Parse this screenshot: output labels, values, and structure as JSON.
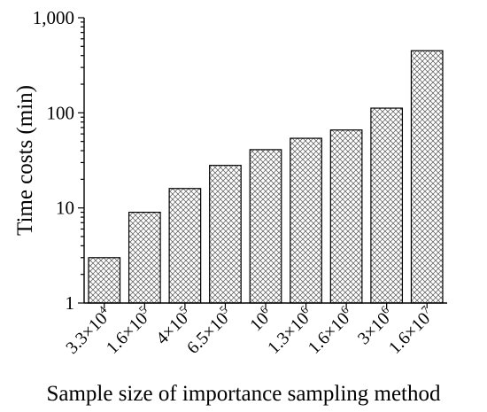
{
  "chart_data": {
    "type": "bar",
    "title": "",
    "xlabel": "Sample size of importance sampling method",
    "ylabel": "Time costs (min)",
    "yscale": "log",
    "ylim": [
      1,
      1000
    ],
    "yticks": [
      {
        "value": 1,
        "label": "1"
      },
      {
        "value": 10,
        "label": "10"
      },
      {
        "value": 100,
        "label": "100"
      },
      {
        "value": 1000,
        "label": "1,000"
      }
    ],
    "categories": [
      {
        "base": "3.3×10",
        "exp": "4"
      },
      {
        "base": "1.6×10",
        "exp": "5"
      },
      {
        "base": "4×10",
        "exp": "5"
      },
      {
        "base": "6.5×10",
        "exp": "5"
      },
      {
        "base": "10",
        "exp": "6"
      },
      {
        "base": "1.3×10",
        "exp": "6"
      },
      {
        "base": "1.6×10",
        "exp": "6"
      },
      {
        "base": "3×10",
        "exp": "6"
      },
      {
        "base": "1.6×10",
        "exp": "7"
      }
    ],
    "values": [
      3,
      9,
      16,
      28,
      41,
      54,
      66,
      112,
      450
    ],
    "pattern": "cross-hatch",
    "bar_color": "#000000",
    "grid": false
  }
}
